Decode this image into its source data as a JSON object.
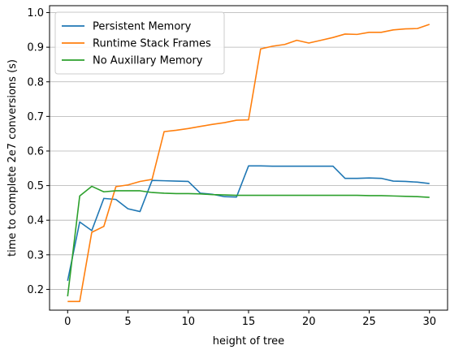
{
  "chart_data": {
    "type": "line",
    "title": "",
    "xlabel": "height of tree",
    "ylabel": "time to complete 2e7 conversions (s)",
    "xlim": [
      -1.5,
      31.5
    ],
    "ylim": [
      0.14,
      1.02
    ],
    "x_ticks": [
      0,
      5,
      10,
      15,
      20,
      25,
      30
    ],
    "y_ticks": [
      0.2,
      0.3,
      0.4,
      0.5,
      0.6,
      0.7,
      0.8,
      0.9,
      1.0
    ],
    "grid": "horizontal",
    "legend_position": "top-left",
    "series": [
      {
        "name": "Persistent Memory",
        "color": "#1f77b4",
        "x": [
          0,
          1,
          2,
          3,
          4,
          5,
          6,
          7,
          8,
          9,
          10,
          11,
          12,
          13,
          14,
          15,
          16,
          17,
          18,
          19,
          20,
          21,
          22,
          23,
          24,
          25,
          26,
          27,
          28,
          29,
          30
        ],
        "y": [
          0.225,
          0.395,
          0.37,
          0.463,
          0.46,
          0.433,
          0.425,
          0.515,
          0.514,
          0.513,
          0.512,
          0.478,
          0.475,
          0.468,
          0.467,
          0.557,
          0.557,
          0.556,
          0.556,
          0.556,
          0.556,
          0.556,
          0.556,
          0.521,
          0.521,
          0.522,
          0.521,
          0.513,
          0.512,
          0.51,
          0.506
        ]
      },
      {
        "name": "Runtime Stack Frames",
        "color": "#ff7f0e",
        "x": [
          0,
          1,
          2,
          3,
          4,
          5,
          6,
          7,
          8,
          9,
          10,
          11,
          12,
          13,
          14,
          15,
          16,
          17,
          18,
          19,
          20,
          21,
          22,
          23,
          24,
          25,
          26,
          27,
          28,
          29,
          30
        ],
        "y": [
          0.165,
          0.165,
          0.365,
          0.382,
          0.497,
          0.502,
          0.512,
          0.518,
          0.656,
          0.66,
          0.665,
          0.671,
          0.677,
          0.682,
          0.689,
          0.69,
          0.895,
          0.903,
          0.908,
          0.92,
          0.912,
          0.92,
          0.928,
          0.938,
          0.937,
          0.943,
          0.943,
          0.95,
          0.953,
          0.954,
          0.966
        ]
      },
      {
        "name": "No Auxillary Memory",
        "color": "#2ca02c",
        "x": [
          0,
          1,
          2,
          3,
          4,
          5,
          6,
          7,
          8,
          9,
          10,
          11,
          12,
          13,
          14,
          15,
          16,
          17,
          18,
          19,
          20,
          21,
          22,
          23,
          24,
          25,
          26,
          27,
          28,
          29,
          30
        ],
        "y": [
          0.18,
          0.47,
          0.498,
          0.482,
          0.485,
          0.485,
          0.485,
          0.48,
          0.478,
          0.477,
          0.477,
          0.476,
          0.474,
          0.473,
          0.472,
          0.472,
          0.472,
          0.472,
          0.472,
          0.472,
          0.472,
          0.472,
          0.472,
          0.472,
          0.472,
          0.471,
          0.471,
          0.47,
          0.469,
          0.468,
          0.466
        ]
      }
    ]
  }
}
